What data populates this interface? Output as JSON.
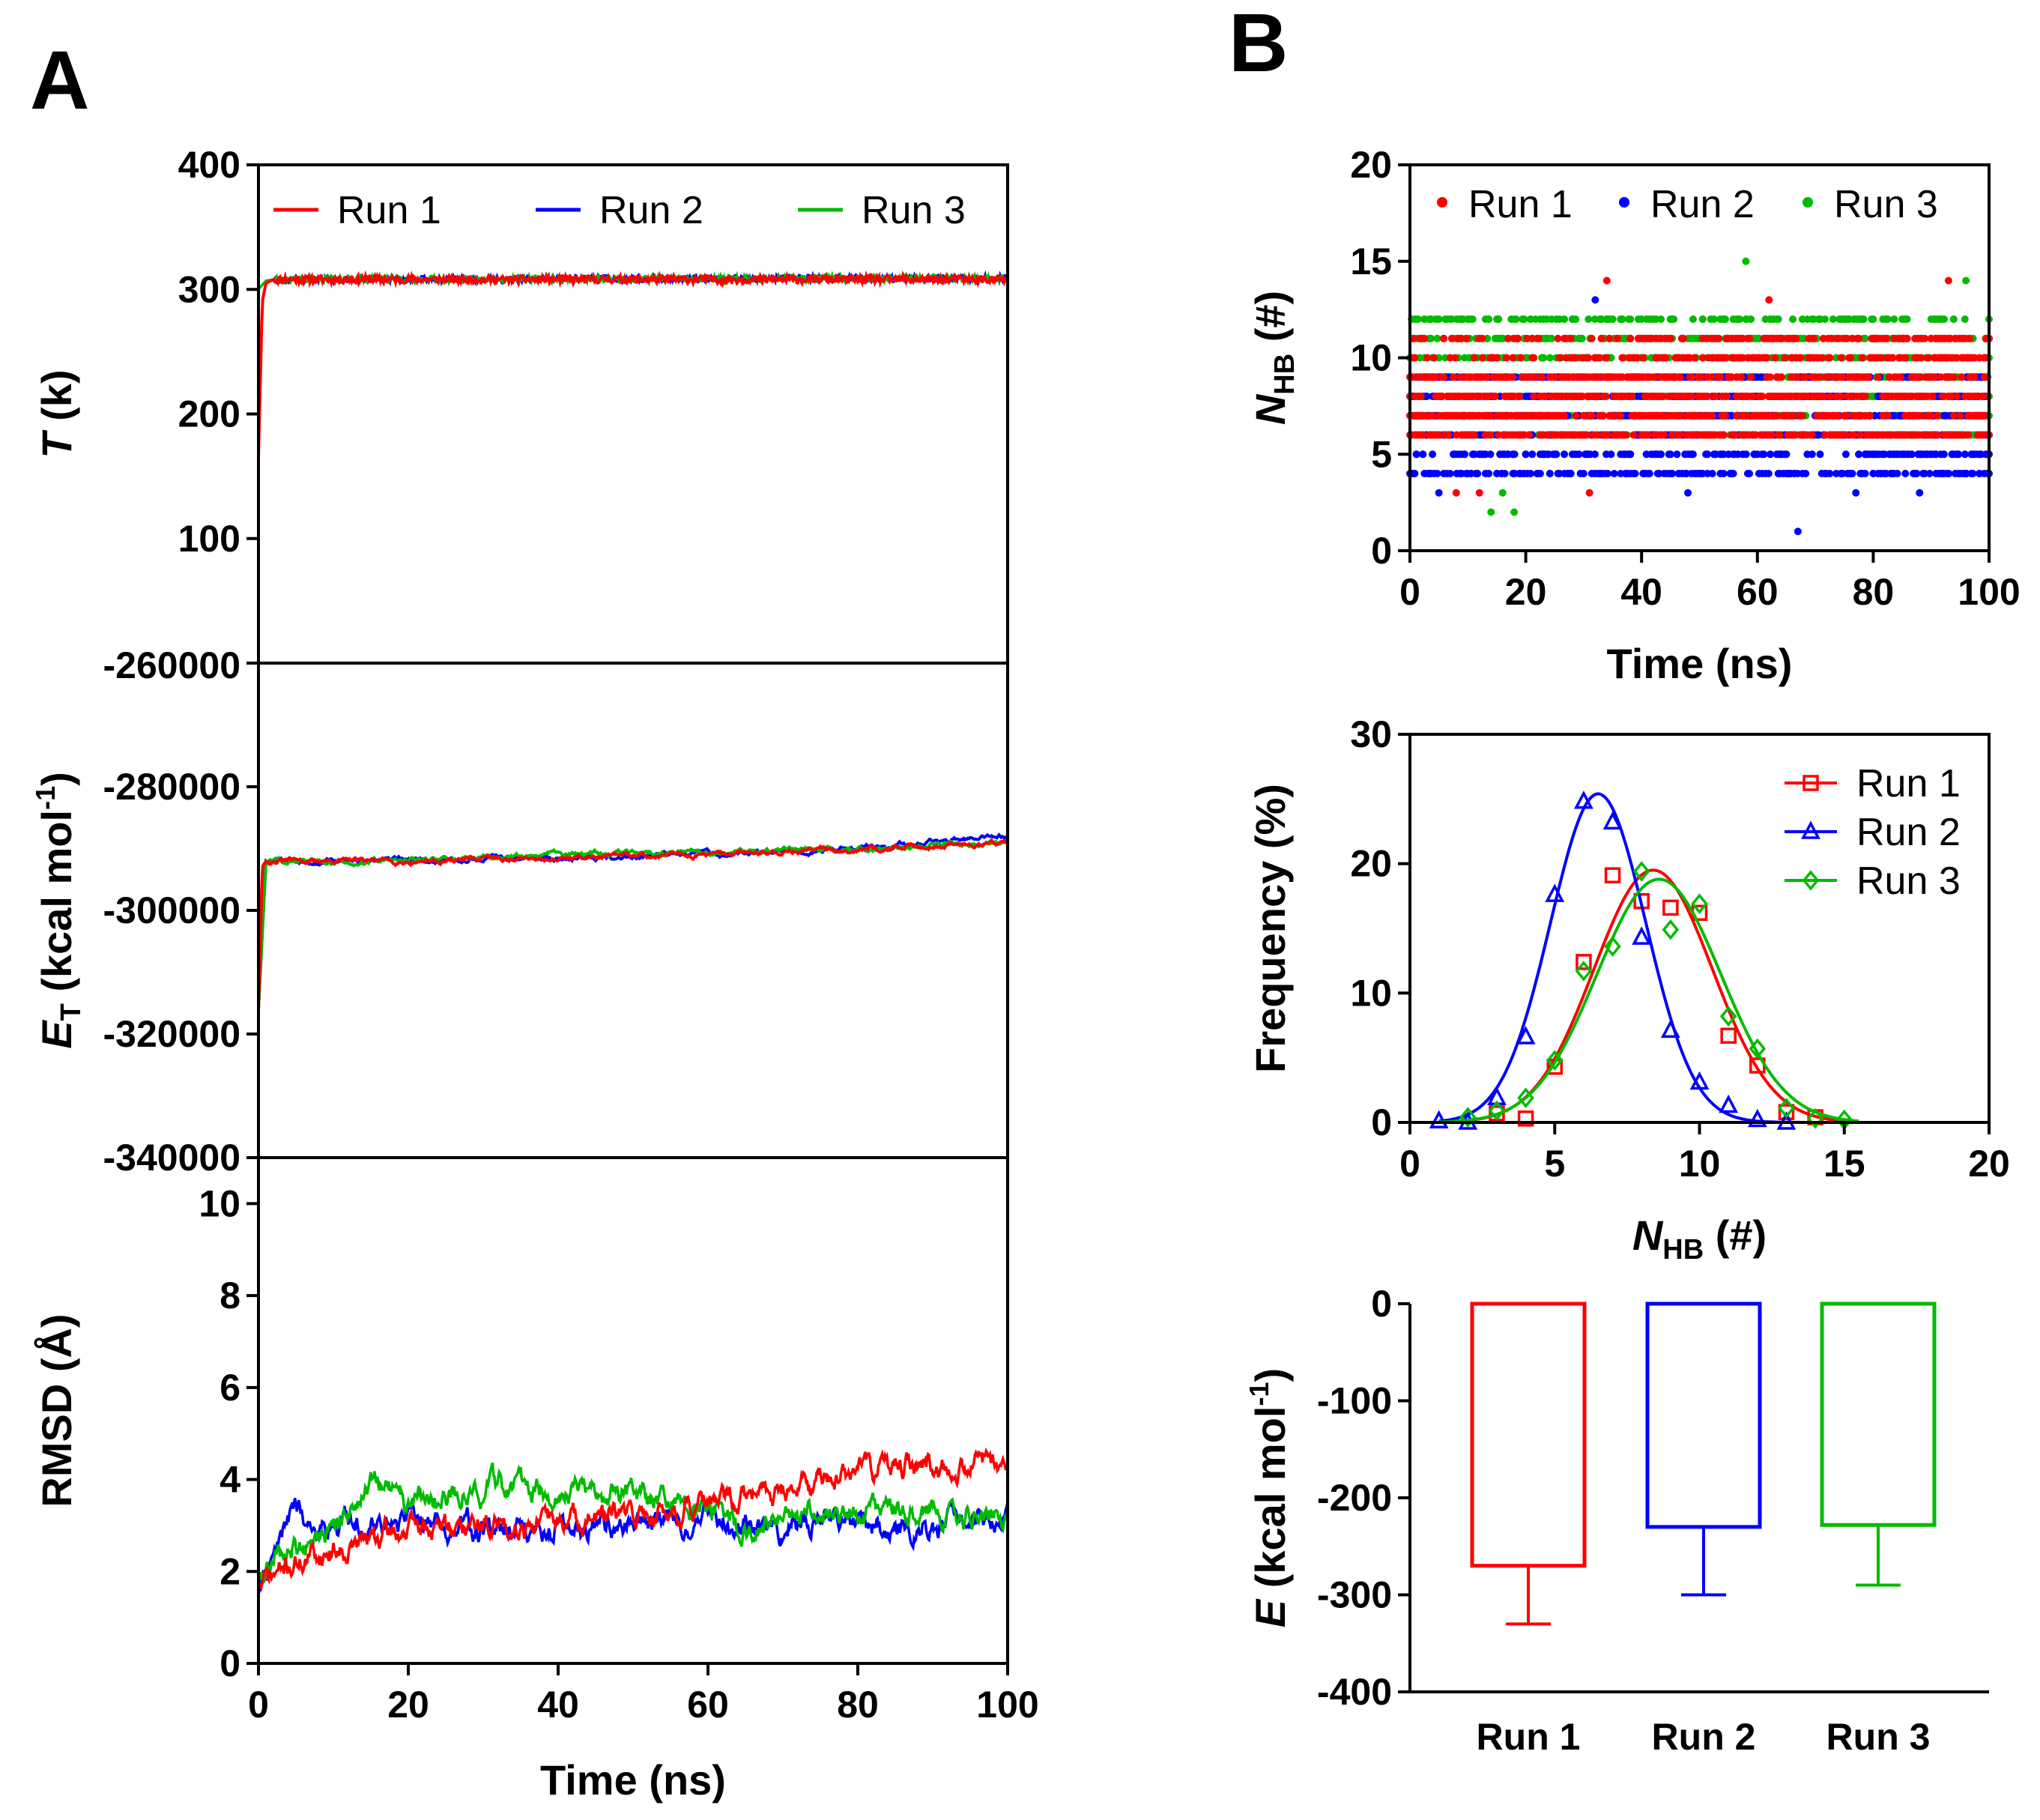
{
  "figure": {
    "panel_labels": [
      "A",
      "B"
    ],
    "colors": {
      "run1": "#ff0000",
      "run2": "#0000ff",
      "run3": "#00bb00",
      "axis": "#000000"
    }
  },
  "chart_data": [
    {
      "id": "temperature",
      "panel": "A",
      "type": "line",
      "title": "",
      "xlabel": "Time (ns)",
      "ylabel": "T (k)",
      "ylabel_parts": {
        "italic": "T",
        "rest": " (k)"
      },
      "xlim": [
        0,
        100
      ],
      "ylim": [
        0,
        400
      ],
      "yticks": [
        0,
        100,
        200,
        300,
        400
      ],
      "ytick_labels": [
        "",
        "100",
        "200",
        "300",
        "400"
      ],
      "legend": [
        "Run 1",
        "Run 2",
        "Run 3"
      ],
      "legend_position": "top",
      "series": [
        {
          "name": "Run 1",
          "color": "#ff0000",
          "x": [
            0,
            0.5,
            1,
            2,
            100
          ],
          "y": [
            165,
            290,
            305,
            308,
            308
          ]
        },
        {
          "name": "Run 2",
          "color": "#0000ff",
          "x": [
            0,
            1,
            2,
            100
          ],
          "y": [
            300,
            307,
            308,
            309
          ]
        },
        {
          "name": "Run 3",
          "color": "#00bb00",
          "x": [
            0,
            1,
            2,
            100
          ],
          "y": [
            300,
            307,
            308,
            309
          ]
        }
      ]
    },
    {
      "id": "energy",
      "panel": "A",
      "type": "line",
      "title": "",
      "xlabel": "Time (ns)",
      "ylabel": "ET (kcal mol-1)",
      "ylabel_parts": {
        "italic": "E",
        "sub": "T",
        "rest": " (kcal mol",
        "sup": "-1",
        "end": ")"
      },
      "xlim": [
        0,
        100
      ],
      "ylim": [
        -340000,
        -260000
      ],
      "yticks": [
        -340000,
        -320000,
        -300000,
        -280000,
        -260000
      ],
      "ytick_labels": [
        "-340000",
        "-320000",
        "-300000",
        "-280000",
        "-260000"
      ],
      "series": [
        {
          "name": "Run 1",
          "color": "#ff0000",
          "x": [
            0,
            0.5,
            1,
            20,
            40,
            60,
            80,
            100
          ],
          "y": [
            -316000,
            -293000,
            -292000,
            -292000,
            -291500,
            -291000,
            -290000,
            -289000
          ]
        },
        {
          "name": "Run 2",
          "color": "#0000ff",
          "x": [
            0,
            1,
            20,
            40,
            60,
            80,
            100
          ],
          "y": [
            -316000,
            -292000,
            -292000,
            -291500,
            -291000,
            -290000,
            -288000
          ]
        },
        {
          "name": "Run 3",
          "color": "#00bb00",
          "x": [
            0,
            1,
            20,
            40,
            60,
            80,
            100
          ],
          "y": [
            -316000,
            -292000,
            -292000,
            -291000,
            -290500,
            -290000,
            -289000
          ]
        }
      ]
    },
    {
      "id": "rmsd",
      "panel": "A",
      "type": "line",
      "title": "",
      "xlabel": "Time (ns)",
      "ylabel": "RMSD (Å)",
      "xlim": [
        0,
        100
      ],
      "ylim": [
        0,
        11
      ],
      "xticks": [
        0,
        20,
        40,
        60,
        80,
        100
      ],
      "xtick_labels": [
        "0",
        "20",
        "40",
        "60",
        "80",
        "100"
      ],
      "yticks": [
        0,
        2,
        4,
        6,
        8,
        10
      ],
      "ytick_labels": [
        "0",
        "2",
        "4",
        "6",
        "8",
        "10"
      ],
      "series": [
        {
          "name": "Run 1",
          "color": "#ff0000",
          "x": [
            0,
            5,
            10,
            20,
            30,
            40,
            50,
            60,
            70,
            80,
            90,
            100
          ],
          "y": [
            1.7,
            2.2,
            2.5,
            2.9,
            3.0,
            3.1,
            3.2,
            3.4,
            3.8,
            4.2,
            4.3,
            4.4
          ]
        },
        {
          "name": "Run 2",
          "color": "#0000ff",
          "x": [
            0,
            3,
            5,
            7,
            10,
            20,
            30,
            40,
            50,
            60,
            70,
            80,
            90,
            100
          ],
          "y": [
            1.6,
            2.8,
            3.4,
            3.0,
            3.0,
            3.2,
            2.9,
            2.9,
            3.0,
            3.2,
            3.0,
            3.0,
            3.0,
            3.3
          ]
        },
        {
          "name": "Run 3",
          "color": "#00bb00",
          "x": [
            0,
            5,
            10,
            15,
            20,
            30,
            40,
            50,
            60,
            65,
            70,
            80,
            90,
            100
          ],
          "y": [
            2.0,
            2.5,
            3.0,
            3.9,
            3.5,
            3.8,
            3.8,
            3.6,
            3.4,
            2.9,
            3.2,
            3.3,
            3.2,
            3.2
          ]
        }
      ]
    },
    {
      "id": "hbond_time",
      "panel": "B",
      "type": "scatter",
      "title": "",
      "xlabel": "Time (ns)",
      "ylabel": "NHB (#)",
      "ylabel_parts": {
        "italic": "N",
        "sub": "HB",
        "rest": " (#)"
      },
      "xlim": [
        0,
        100
      ],
      "ylim": [
        0,
        20
      ],
      "xticks": [
        0,
        20,
        40,
        60,
        80,
        100
      ],
      "xtick_labels": [
        "0",
        "20",
        "40",
        "60",
        "80",
        "100"
      ],
      "yticks": [
        0,
        5,
        10,
        15,
        20
      ],
      "ytick_labels": [
        "0",
        "5",
        "10",
        "15",
        "20"
      ],
      "legend": [
        "Run 1",
        "Run 2",
        "Run 3"
      ],
      "legend_position": "top",
      "series": [
        {
          "name": "Run 1",
          "color": "#ff0000",
          "value_range": [
            3,
            14
          ],
          "typical": [
            6,
            7,
            8,
            9,
            10,
            11
          ],
          "outliers": [
            {
              "x": 2,
              "y": 11
            },
            {
              "x": 3,
              "y": 10
            },
            {
              "x": 8,
              "y": 3
            },
            {
              "x": 12,
              "y": 3
            },
            {
              "x": 31,
              "y": 3
            },
            {
              "x": 34,
              "y": 14
            },
            {
              "x": 62,
              "y": 13
            },
            {
              "x": 93,
              "y": 14
            }
          ]
        },
        {
          "name": "Run 2",
          "color": "#0000ff",
          "value_range": [
            1,
            13
          ],
          "typical": [
            4,
            5,
            6,
            7,
            8,
            9
          ],
          "outliers": [
            {
              "x": 5,
              "y": 3
            },
            {
              "x": 22,
              "y": 4
            },
            {
              "x": 32,
              "y": 13
            },
            {
              "x": 48,
              "y": 3
            },
            {
              "x": 67,
              "y": 1
            },
            {
              "x": 77,
              "y": 3
            },
            {
              "x": 88,
              "y": 3
            }
          ]
        },
        {
          "name": "Run 3",
          "color": "#00bb00",
          "value_range": [
            2,
            15
          ],
          "typical": [
            6,
            7,
            8,
            9,
            10,
            11,
            12
          ],
          "outliers": [
            {
              "x": 14,
              "y": 2
            },
            {
              "x": 18,
              "y": 2
            },
            {
              "x": 16,
              "y": 3
            },
            {
              "x": 58,
              "y": 15
            },
            {
              "x": 96,
              "y": 14
            }
          ]
        }
      ]
    },
    {
      "id": "hbond_distribution",
      "panel": "B",
      "type": "scatter",
      "title": "",
      "xlabel": "NHB (#)",
      "xlabel_parts": {
        "italic": "N",
        "sub": "HB",
        "rest": " (#)"
      },
      "ylabel": "Frequency (%)",
      "xlim": [
        0,
        20
      ],
      "ylim": [
        0,
        30
      ],
      "xticks": [
        0,
        5,
        10,
        15,
        20
      ],
      "xtick_labels": [
        "0",
        "5",
        "10",
        "15",
        "20"
      ],
      "yticks": [
        0,
        10,
        20,
        30
      ],
      "ytick_labels": [
        "0",
        "10",
        "20",
        "30"
      ],
      "legend": [
        "Run 1",
        "Run 2",
        "Run 3"
      ],
      "legend_position": "top-right",
      "series": [
        {
          "name": "Run 1",
          "color": "#ff0000",
          "marker": "square",
          "x": [
            3,
            4,
            5,
            6,
            7,
            8,
            9,
            10,
            11,
            12,
            13,
            14
          ],
          "y": [
            0.7,
            0.3,
            4.3,
            12.4,
            19.1,
            17.1,
            16.6,
            16.2,
            6.7,
            4.4,
            0.8,
            0.4
          ],
          "fit": {
            "amplitude": 19.5,
            "mean": 8.4,
            "sd": 2.05
          }
        },
        {
          "name": "Run 2",
          "color": "#0000ff",
          "marker": "triangle",
          "x": [
            1,
            2,
            3,
            4,
            5,
            6,
            7,
            8,
            9,
            10,
            11,
            12,
            13
          ],
          "y": [
            0.1,
            0.0,
            1.9,
            6.6,
            17.6,
            24.8,
            23.2,
            14.3,
            7.1,
            3.1,
            1.3,
            0.2,
            0.0
          ],
          "fit": {
            "amplitude": 25.4,
            "mean": 6.5,
            "sd": 1.65
          }
        },
        {
          "name": "Run 3",
          "color": "#00bb00",
          "marker": "diamond",
          "x": [
            2,
            3,
            4,
            5,
            6,
            7,
            8,
            9,
            10,
            11,
            12,
            13,
            14,
            15
          ],
          "y": [
            0.4,
            0.9,
            1.9,
            4.8,
            11.7,
            13.6,
            19.4,
            14.9,
            16.9,
            8.2,
            5.7,
            1.1,
            0.3,
            0.2
          ],
          "fit": {
            "amplitude": 18.8,
            "mean": 8.6,
            "sd": 2.15
          }
        }
      ]
    },
    {
      "id": "interaction_energy",
      "panel": "B",
      "type": "bar",
      "title": "",
      "xlabel": "",
      "ylabel": "E (kcal mol-1)",
      "ylabel_parts": {
        "italic": "E",
        "rest": " (kcal mol",
        "sup": "-1",
        "end": ")"
      },
      "categories": [
        "Run 1",
        "Run 2",
        "Run 3"
      ],
      "values": [
        -270,
        -230,
        -228
      ],
      "errors": [
        60,
        70,
        62
      ],
      "colors": [
        "#ff0000",
        "#0000ff",
        "#00bb00"
      ],
      "ylim": [
        -400,
        0
      ],
      "yticks": [
        -400,
        -300,
        -200,
        -100,
        0
      ],
      "ytick_labels": [
        "-400",
        "-300",
        "-200",
        "-100",
        "0"
      ]
    }
  ]
}
